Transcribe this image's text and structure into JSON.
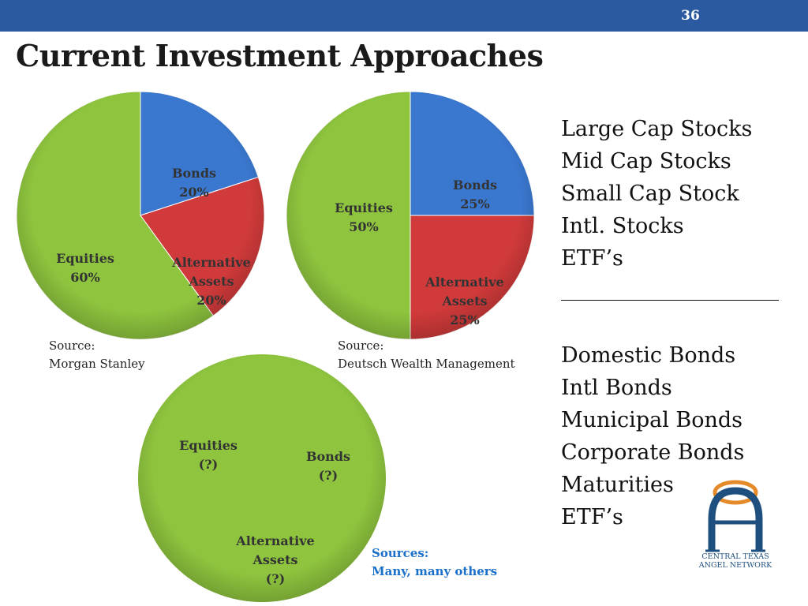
{
  "slide": {
    "number": "36",
    "title": "Current Investment Approaches"
  },
  "chart_data": [
    {
      "type": "pie",
      "title": "",
      "slices": [
        {
          "label_lines": [
            "Bonds",
            "20%"
          ],
          "value": 20,
          "color": "#3a78d0"
        },
        {
          "label_lines": [
            "Alternative",
            "Assets",
            "20%"
          ],
          "value": 20,
          "color": "#d13a3a"
        },
        {
          "label_lines": [
            "Equities",
            "60%"
          ],
          "value": 60,
          "color": "#8ec43e"
        }
      ],
      "source_lines": [
        "Source:",
        "Morgan Stanley"
      ]
    },
    {
      "type": "pie",
      "title": "",
      "slices": [
        {
          "label_lines": [
            "Bonds",
            "25%"
          ],
          "value": 25,
          "color": "#3a78d0"
        },
        {
          "label_lines": [
            "Alternative",
            "Assets",
            "25%"
          ],
          "value": 25,
          "color": "#d13a3a"
        },
        {
          "label_lines": [
            "Equities",
            "50%"
          ],
          "value": 50,
          "color": "#8ec43e"
        }
      ],
      "source_lines": [
        "Source:",
        "Deutsch Wealth Management"
      ]
    },
    {
      "type": "pie",
      "title": "",
      "slices": [
        {
          "label_lines": [
            "Equities",
            "(?)"
          ],
          "value": null,
          "color": "#8ec43e"
        },
        {
          "label_lines": [
            "Bonds",
            "(?)"
          ],
          "value": null,
          "color": "#8ec43e"
        },
        {
          "label_lines": [
            "Alternative",
            "Assets",
            "(?)"
          ],
          "value": null,
          "color": "#8ec43e"
        }
      ],
      "source_lines": [
        "Sources:",
        "Many, many others"
      ]
    }
  ],
  "categories_list": {
    "stocks": [
      "Large Cap Stocks",
      "Mid Cap Stocks",
      "Small Cap Stock",
      "Intl. Stocks",
      "ETF’s"
    ],
    "bonds": [
      "Domestic Bonds",
      "Intl Bonds",
      "Municipal Bonds",
      "Corporate Bonds",
      "Maturities",
      "ETF’s"
    ]
  },
  "logo": {
    "icon": "arch-a-logo-icon",
    "lines": [
      "CENTRAL TEXAS",
      "ANGEL NETWORK"
    ]
  }
}
